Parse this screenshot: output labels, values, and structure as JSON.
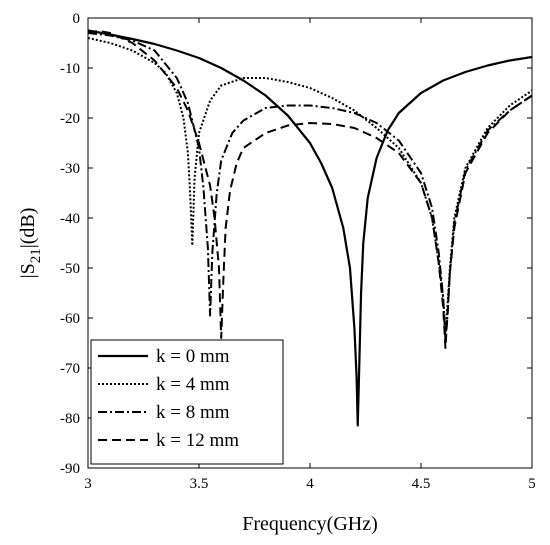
{
  "chart_data": {
    "type": "line",
    "xlabel": "Frequency(GHz)",
    "ylabel_main": "|S",
    "ylabel_sub": "21",
    "ylabel_tail": "|(dB)",
    "xlim": [
      3,
      5
    ],
    "ylim": [
      -90,
      0
    ],
    "xticks": [
      3,
      3.5,
      4,
      4.5,
      5
    ],
    "xtick_labels": [
      "3",
      "3.5",
      "4",
      "4.5",
      "5"
    ],
    "yticks": [
      0,
      -10,
      -20,
      -30,
      -40,
      -50,
      -60,
      -70,
      -80,
      -90
    ],
    "ytick_labels": [
      "0",
      "-10",
      "-20",
      "-30",
      "-40",
      "-50",
      "-60",
      "-70",
      "-80",
      "-90"
    ],
    "grid": false,
    "legend_position": "bottom-left",
    "series": [
      {
        "name": "k = 0 mm",
        "line_style": "solid",
        "color": "#000000",
        "x": [
          3.0,
          3.1,
          3.2,
          3.3,
          3.4,
          3.5,
          3.6,
          3.7,
          3.8,
          3.9,
          4.0,
          4.05,
          4.1,
          4.15,
          4.18,
          4.2,
          4.21,
          4.215,
          4.22,
          4.225,
          4.23,
          4.24,
          4.26,
          4.3,
          4.35,
          4.4,
          4.5,
          4.6,
          4.7,
          4.8,
          4.9,
          5.0
        ],
        "y": [
          -2.5,
          -3.3,
          -4.2,
          -5.2,
          -6.5,
          -8.0,
          -10.0,
          -12.5,
          -15.5,
          -19.5,
          -25.0,
          -29.0,
          -34.0,
          -42.0,
          -50.0,
          -62.0,
          -72.0,
          -81.5,
          -73.0,
          -64.0,
          -55.0,
          -45.0,
          -36.0,
          -28.0,
          -22.5,
          -19.0,
          -15.0,
          -12.5,
          -10.8,
          -9.5,
          -8.5,
          -7.8
        ]
      },
      {
        "name": "k = 4 mm",
        "line_style": "dotted",
        "color": "#000000",
        "x": [
          3.0,
          3.1,
          3.2,
          3.3,
          3.35,
          3.4,
          3.43,
          3.45,
          3.46,
          3.47,
          3.48,
          3.5,
          3.55,
          3.6,
          3.7,
          3.8,
          3.9,
          4.0,
          4.1,
          4.2,
          4.3,
          4.4,
          4.5,
          4.55,
          4.58,
          4.6,
          4.61,
          4.62,
          4.63,
          4.65,
          4.7,
          4.8,
          4.9,
          5.0
        ],
        "y": [
          -4.0,
          -5.0,
          -6.5,
          -9.0,
          -11.0,
          -15.0,
          -20.0,
          -27.0,
          -35.0,
          -45.5,
          -32.0,
          -23.0,
          -16.5,
          -13.5,
          -12.0,
          -12.0,
          -12.8,
          -14.0,
          -16.0,
          -18.5,
          -22.0,
          -26.0,
          -33.0,
          -40.0,
          -49.0,
          -56.0,
          -63.0,
          -57.0,
          -50.0,
          -40.0,
          -30.0,
          -22.0,
          -17.5,
          -14.5
        ]
      },
      {
        "name": "k = 8 mm",
        "line_style": "dashdot",
        "color": "#000000",
        "x": [
          3.0,
          3.1,
          3.2,
          3.3,
          3.4,
          3.45,
          3.5,
          3.52,
          3.54,
          3.55,
          3.56,
          3.58,
          3.6,
          3.65,
          3.7,
          3.8,
          3.9,
          4.0,
          4.1,
          4.2,
          4.3,
          4.4,
          4.5,
          4.55,
          4.58,
          4.6,
          4.61,
          4.62,
          4.63,
          4.65,
          4.7,
          4.8,
          4.9,
          5.0
        ],
        "y": [
          -3.0,
          -3.5,
          -4.5,
          -6.5,
          -12.0,
          -17.0,
          -26.0,
          -34.0,
          -46.0,
          -59.5,
          -47.0,
          -35.0,
          -28.5,
          -23.0,
          -20.5,
          -18.0,
          -17.5,
          -17.5,
          -18.0,
          -19.0,
          -21.0,
          -24.5,
          -31.0,
          -38.0,
          -47.0,
          -56.0,
          -64.5,
          -59.0,
          -51.0,
          -41.0,
          -30.5,
          -22.5,
          -18.5,
          -15.5
        ]
      },
      {
        "name": "k = 12 mm",
        "line_style": "dashed",
        "color": "#000000",
        "x": [
          3.0,
          3.05,
          3.1,
          3.2,
          3.3,
          3.4,
          3.45,
          3.5,
          3.55,
          3.57,
          3.59,
          3.6,
          3.61,
          3.62,
          3.64,
          3.67,
          3.7,
          3.8,
          3.9,
          4.0,
          4.1,
          4.2,
          4.3,
          4.4,
          4.5,
          4.55,
          4.58,
          4.6,
          4.61,
          4.62,
          4.63,
          4.65,
          4.7,
          4.8,
          4.9,
          5.0
        ],
        "y": [
          -2.8,
          -2.6,
          -3.0,
          -5.0,
          -8.5,
          -14.0,
          -18.5,
          -25.0,
          -33.5,
          -40.0,
          -50.0,
          -64.0,
          -52.0,
          -42.0,
          -34.5,
          -29.0,
          -26.0,
          -23.0,
          -21.5,
          -21.0,
          -21.2,
          -22.0,
          -24.0,
          -27.0,
          -33.0,
          -40.0,
          -49.0,
          -58.0,
          -66.0,
          -59.0,
          -51.0,
          -42.0,
          -31.0,
          -23.0,
          -18.5,
          -15.5
        ]
      }
    ]
  }
}
